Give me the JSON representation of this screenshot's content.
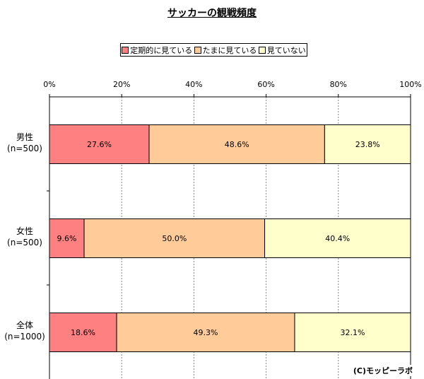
{
  "chart_data": {
    "type": "bar",
    "orientation": "horizontal",
    "stacked": true,
    "title": "サッカーの観戦頻度",
    "xlim": [
      0,
      100
    ],
    "ticks": [
      "0%",
      "20%",
      "40%",
      "60%",
      "80%",
      "100%"
    ],
    "grid": true,
    "legend_position": "top",
    "categories": [
      "男性\n(n=500)",
      "女性\n(n=500)",
      "全体\n(n=1000)"
    ],
    "series": [
      {
        "name": "定期的に見ている",
        "color": "#ff8080",
        "values": [
          27.6,
          9.6,
          18.6
        ],
        "labels": [
          "27.6%",
          "9.6%",
          "18.6%"
        ]
      },
      {
        "name": "たまに見ている",
        "color": "#ffcc99",
        "values": [
          48.6,
          50.0,
          49.3
        ],
        "labels": [
          "48.6%",
          "50.0%",
          "49.3%"
        ]
      },
      {
        "name": "見ていない",
        "color": "#ffffcc",
        "values": [
          23.8,
          40.4,
          32.1
        ],
        "labels": [
          "23.8%",
          "40.4%",
          "32.1%"
        ]
      }
    ]
  },
  "copyright": "(C)モッピーラボ"
}
